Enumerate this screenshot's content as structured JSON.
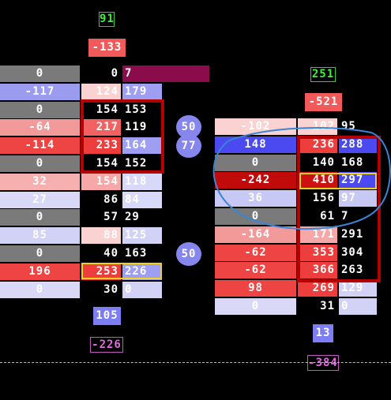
{
  "left": {
    "top_delta": "91",
    "top_badge": "-133",
    "poc_volume": "105",
    "poc_delta": "-226",
    "rows": [
      {
        "delta": "0",
        "bid": "0",
        "ask": "7",
        "dc": "#7a7a7a",
        "bc": "#000000",
        "ac": "#8b0c4b"
      },
      {
        "delta": "-117",
        "bid": "124",
        "ask": "179",
        "dc": "#9b9bf0",
        "bc": "#fbd2d2",
        "ac": "#9e9ef2"
      },
      {
        "delta": "0",
        "bid": "154",
        "ask": "153",
        "dc": "#7a7a7a",
        "bc": "#000000",
        "ac": "#000000"
      },
      {
        "delta": "-64",
        "bid": "217",
        "ask": "119",
        "dc": "#f29a9a",
        "bc": "#f36262",
        "ac": "#000000"
      },
      {
        "delta": "-114",
        "bid": "233",
        "ask": "164",
        "dc": "#ef4444",
        "bc": "#ee3d3d",
        "ac": "#9e9ef2"
      },
      {
        "delta": "0",
        "bid": "154",
        "ask": "152",
        "dc": "#7a7a7a",
        "bc": "#000000",
        "ac": "#000000"
      },
      {
        "delta": "32",
        "bid": "154",
        "ask": "118",
        "dc": "#f6b0b0",
        "bc": "#f6a8a8",
        "ac": "#d8d8f8"
      },
      {
        "delta": "27",
        "bid": "86",
        "ask": "84",
        "dc": "#d9d9f7",
        "bc": "#000000",
        "ac": "#d8d8f8"
      },
      {
        "delta": "0",
        "bid": "57",
        "ask": "29",
        "dc": "#7a7a7a",
        "bc": "#000000",
        "ac": "#000000"
      },
      {
        "delta": "85",
        "bid": "88",
        "ask": "125",
        "dc": "#d2d2f6",
        "bc": "#fbd2d2",
        "ac": "#d2d2f6"
      },
      {
        "delta": "0",
        "bid": "40",
        "ask": "163",
        "dc": "#7a7a7a",
        "bc": "#000000",
        "ac": "#000000"
      },
      {
        "delta": "196",
        "bid": "253",
        "ask": "226",
        "dc": "#ef4444",
        "bc": "#ee3d3d",
        "ac": "#9e9ef2"
      },
      {
        "delta": "0",
        "bid": "30",
        "ask": "0",
        "dc": "#d9d9f7",
        "bc": "#000000",
        "ac": "#d2d2f6"
      }
    ]
  },
  "circles": [
    "50",
    "77",
    "50"
  ],
  "right": {
    "top_delta": "251",
    "top_badge": "-521",
    "poc_volume": "13",
    "poc_delta": "-384",
    "rows": [
      {
        "delta": "-102",
        "bid": "102",
        "ask": "95",
        "dc": "#fbd2d2",
        "bc": "#fbd2d2",
        "ac": "#000000"
      },
      {
        "delta": "148",
        "bid": "236",
        "ask": "288",
        "dc": "#4a4af0",
        "bc": "#ee3d3d",
        "ac": "#4a4af0"
      },
      {
        "delta": "0",
        "bid": "140",
        "ask": "168",
        "dc": "#7a7a7a",
        "bc": "#000000",
        "ac": "#000000"
      },
      {
        "delta": "-242",
        "bid": "410",
        "ask": "297",
        "dc": "#c10b0b",
        "bc": "#cc1111",
        "ac": "#4a4af0"
      },
      {
        "delta": "36",
        "bid": "156",
        "ask": "97",
        "dc": "#c8c8f4",
        "bc": "#000000",
        "ac": "#c8c8f4"
      },
      {
        "delta": "0",
        "bid": "61",
        "ask": "7",
        "dc": "#7a7a7a",
        "bc": "#000000",
        "ac": "#000000"
      },
      {
        "delta": "-164",
        "bid": "171",
        "ask": "291",
        "dc": "#f29a9a",
        "bc": "#f6a8a8",
        "ac": "#000000"
      },
      {
        "delta": "-62",
        "bid": "353",
        "ask": "304",
        "dc": "#ef4444",
        "bc": "#ee3d3d",
        "ac": "#000000"
      },
      {
        "delta": "-62",
        "bid": "366",
        "ask": "263",
        "dc": "#ef4444",
        "bc": "#ee3d3d",
        "ac": "#000000"
      },
      {
        "delta": "98",
        "bid": "269",
        "ask": "129",
        "dc": "#ef4444",
        "bc": "#ee3d3d",
        "ac": "#d2d2f6"
      },
      {
        "delta": "0",
        "bid": "31",
        "ask": "0",
        "dc": "#d9d9f7",
        "bc": "#000000",
        "ac": "#d2d2f6"
      }
    ]
  },
  "colors": {
    "background": "#000000",
    "top_delta_text": "#3cf03c",
    "badge_red": "#f05a5a",
    "poc_volume_bg": "#7d7df5",
    "poc_delta_text": "#e06be0",
    "highlight_box": "#b30000",
    "selection_box": "#f0d020",
    "annotation_stroke": "#3a86d6"
  }
}
